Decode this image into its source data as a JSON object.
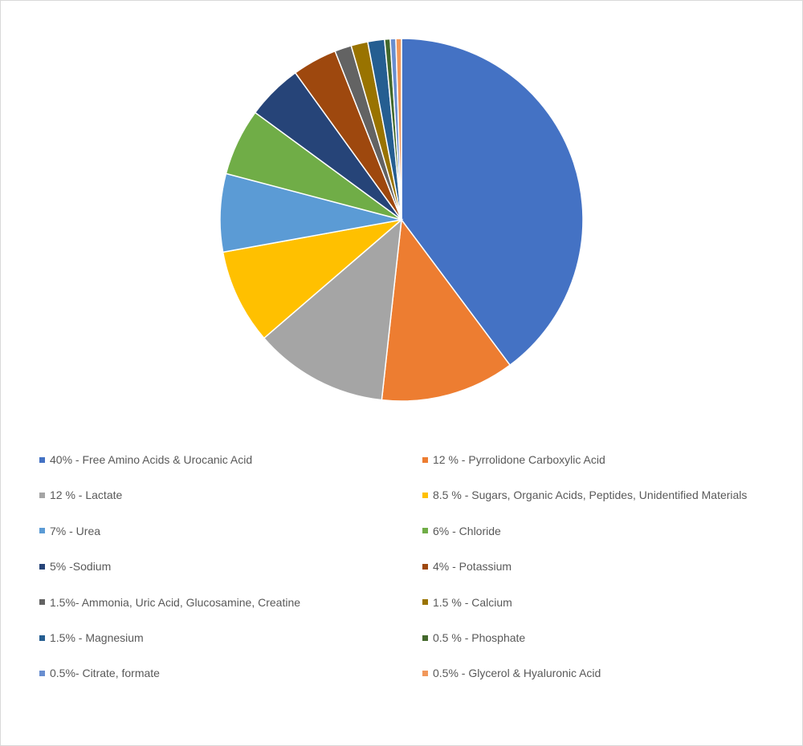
{
  "chart_data": {
    "type": "pie",
    "title": "",
    "legend_position": "bottom",
    "start_angle_deg": 0,
    "direction": "clockwise",
    "slices": [
      {
        "label": "40% - Free Amino Acids & Urocanic Acid",
        "value": 40,
        "color": "#4472C4"
      },
      {
        "label": "12 % - Pyrrolidone Carboxylic Acid",
        "value": 12,
        "color": "#ED7D31"
      },
      {
        "label": "12 % - Lactate",
        "value": 12,
        "color": "#A5A5A5"
      },
      {
        "label": "8.5 % - Sugars, Organic Acids, Peptides, Unidentified Materials",
        "value": 8.5,
        "color": "#FFC000"
      },
      {
        "label": "7% - Urea",
        "value": 7,
        "color": "#5B9BD5"
      },
      {
        "label": "6% - Chloride",
        "value": 6,
        "color": "#70AD47"
      },
      {
        "label": "5% -Sodium",
        "value": 5,
        "color": "#264478"
      },
      {
        "label": "4% - Potassium",
        "value": 4,
        "color": "#9E480E"
      },
      {
        "label": "1.5%- Ammonia, Uric Acid, Glucosamine, Creatine",
        "value": 1.5,
        "color": "#636363"
      },
      {
        "label": "1.5 % - Calcium",
        "value": 1.5,
        "color": "#997300"
      },
      {
        "label": "1.5% - Magnesium",
        "value": 1.5,
        "color": "#255E91"
      },
      {
        "label": "0.5 % - Phosphate",
        "value": 0.5,
        "color": "#43682B"
      },
      {
        "label": "0.5%- Citrate, formate",
        "value": 0.5,
        "color": "#698ED0"
      },
      {
        "label": "0.5% - Glycerol & Hyaluronic Acid",
        "value": 0.5,
        "color": "#F1975A"
      }
    ]
  }
}
